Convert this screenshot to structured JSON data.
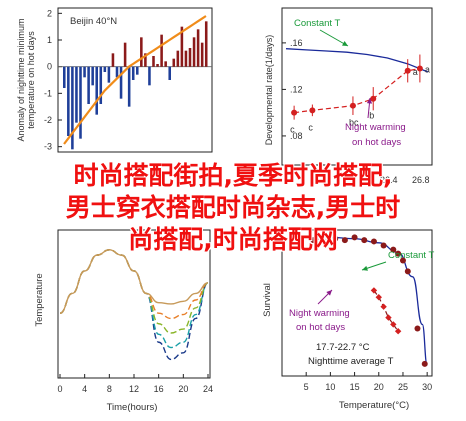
{
  "overlay": {
    "line1": "时尚搭配街拍,夏季时尚搭配,",
    "line2": "男士穿衣搭配时尚杂志,男士时",
    "line3": "尚搭配,时尚搭配网"
  },
  "colors": {
    "bar_pos": "#8b1a1a",
    "bar_neg": "#1f3f99",
    "trend": "#f08c1a",
    "red": "#d42020",
    "blue": "#1a2a9a",
    "green": "#1a9a3a",
    "purple": "#8a1a8a",
    "beige": "#c79a5a",
    "orange": "#e8802a",
    "lime": "#8ab52a",
    "teal": "#1aa0a8",
    "navy": "#1a3a8a"
  },
  "chart_data": [
    {
      "id": "top-left",
      "type": "bar",
      "title": "Beijin 40°N",
      "ylabel": "Anomaly of nighttime minimum temperature on hot days",
      "yticks": [
        "2",
        "1",
        "0",
        "-1",
        "-2",
        "-3"
      ],
      "ylim": [
        -3.2,
        2.2
      ],
      "values": [
        -0.8,
        -2.6,
        -3.1,
        -2.1,
        -2.7,
        -0.4,
        -1.4,
        -0.7,
        -1.8,
        -1.4,
        -0.2,
        -0.6,
        0.5,
        -0.4,
        -1.2,
        0.9,
        -1.5,
        -0.5,
        -0.3,
        1.1,
        0.5,
        -0.7,
        0.4,
        0.1,
        1.2,
        0.2,
        -0.5,
        0.3,
        0.6,
        1.5,
        0.6,
        0.7,
        1.1,
        1.4,
        0.9,
        1.7
      ],
      "trend": [
        -2.9,
        -2.7,
        -2.5,
        -2.3,
        -2.1,
        -1.9,
        -1.7,
        -1.5,
        -1.3,
        -1.1,
        -0.9,
        -0.75,
        -0.6,
        -0.45,
        -0.3,
        -0.15,
        0.0,
        0.1,
        0.2,
        0.3,
        0.4,
        0.5,
        0.6,
        0.7,
        0.8,
        0.9,
        1.0,
        1.1,
        1.2,
        1.3,
        1.4,
        1.5,
        1.6,
        1.7,
        1.8,
        1.9
      ]
    },
    {
      "id": "top-right",
      "type": "line",
      "ylabel": "Developmental rate(1/days)",
      "xticks": [
        "26.4",
        "26.8"
      ],
      "yticks": [
        "0.16",
        "0.12",
        "0.08"
      ],
      "ylim": [
        0.055,
        0.19
      ],
      "xlim": [
        0,
        7
      ],
      "curve_label": "Constant T",
      "curve_x": [
        0,
        1,
        2,
        3,
        4,
        5,
        6,
        7
      ],
      "curve_y": [
        0.155,
        0.154,
        0.153,
        0.152,
        0.15,
        0.147,
        0.142,
        0.135
      ],
      "points": [
        {
          "x": 0.4,
          "y": 0.1,
          "err": 0.006,
          "label": "c"
        },
        {
          "x": 1.3,
          "y": 0.102,
          "err": 0.005,
          "label": "c"
        },
        {
          "x": 3.3,
          "y": 0.106,
          "err": 0.008,
          "label": "bc"
        },
        {
          "x": 4.3,
          "y": 0.112,
          "err": 0.01,
          "label": "b"
        },
        {
          "x": 6.0,
          "y": 0.136,
          "err": 0.01,
          "label": "a"
        },
        {
          "x": 6.6,
          "y": 0.138,
          "err": 0.012,
          "label": "a"
        }
      ],
      "annotation": "Night warming\non hot days"
    },
    {
      "id": "bottom-left",
      "type": "line",
      "xlabel": "Time(hours)",
      "ylabel": "Temperature",
      "xticks": [
        "0",
        "4",
        "8",
        "12",
        "16",
        "20",
        "24"
      ],
      "xlim": [
        0,
        24
      ],
      "ylim": [
        0,
        10
      ],
      "series": [
        {
          "color": "beige",
          "y": [
            4,
            5.5,
            7.2,
            8.4,
            8.8,
            8.4,
            7.2,
            5.5,
            4.8,
            4.7,
            4.9,
            5.5,
            6.3
          ]
        },
        {
          "color": "orange",
          "y": [
            4,
            5.5,
            7.2,
            8.4,
            8.8,
            8.4,
            7.2,
            5.5,
            4.0,
            3.6,
            3.9,
            5.0,
            6.3
          ]
        },
        {
          "color": "lime",
          "y": [
            4,
            5.5,
            7.2,
            8.4,
            8.8,
            8.4,
            7.2,
            5.5,
            3.2,
            2.5,
            2.8,
            4.4,
            6.3
          ]
        },
        {
          "color": "teal",
          "y": [
            4,
            5.5,
            7.2,
            8.4,
            8.8,
            8.4,
            7.2,
            5.5,
            2.4,
            1.4,
            1.8,
            3.9,
            6.3
          ]
        },
        {
          "color": "navy",
          "y": [
            4,
            5.5,
            7.2,
            8.4,
            8.8,
            8.4,
            7.2,
            5.5,
            1.8,
            0.5,
            1.0,
            3.6,
            6.3
          ]
        }
      ]
    },
    {
      "id": "bottom-right",
      "type": "scatter",
      "xlabel": "Temperature(°C)",
      "ylabel": "Survival",
      "xticks": [
        "5",
        "10",
        "15",
        "20",
        "25",
        "30"
      ],
      "xlim": [
        0,
        31
      ],
      "ylim": [
        0,
        1
      ],
      "curve_label": "Constant T",
      "curve_x": [
        6,
        10,
        15,
        20,
        24,
        27,
        29,
        30
      ],
      "curve_y": [
        0.98,
        0.99,
        0.98,
        0.95,
        0.88,
        0.7,
        0.35,
        0.05
      ],
      "circles": [
        {
          "x": 6.5,
          "y": 0.97
        },
        {
          "x": 8,
          "y": 0.99
        },
        {
          "x": 9.5,
          "y": 0.96
        },
        {
          "x": 11,
          "y": 0.98
        },
        {
          "x": 13,
          "y": 0.97
        },
        {
          "x": 15,
          "y": 0.99
        },
        {
          "x": 17,
          "y": 0.97
        },
        {
          "x": 19,
          "y": 0.96
        },
        {
          "x": 21,
          "y": 0.93
        },
        {
          "x": 23,
          "y": 0.9
        },
        {
          "x": 24,
          "y": 0.87
        },
        {
          "x": 25,
          "y": 0.82
        },
        {
          "x": 26,
          "y": 0.74
        },
        {
          "x": 28,
          "y": 0.32
        },
        {
          "x": 29.5,
          "y": 0.06
        }
      ],
      "diamonds": [
        {
          "x": 19,
          "y": 0.6
        },
        {
          "x": 20,
          "y": 0.55
        },
        {
          "x": 21,
          "y": 0.48
        },
        {
          "x": 22,
          "y": 0.4
        },
        {
          "x": 23,
          "y": 0.35
        },
        {
          "x": 24,
          "y": 0.3
        }
      ],
      "annotation": "Night warming\non hot days",
      "annotation2": "17.7-22.7 °C",
      "annotation3": "Nighttime average T"
    }
  ]
}
